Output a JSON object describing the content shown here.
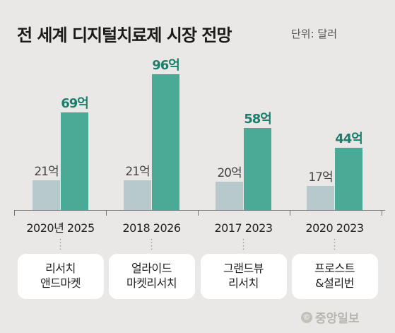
{
  "title": "전 세계 디지털치료제 시장 전망",
  "unit": "단위: 달러",
  "colors": {
    "start": "#b8c9cc",
    "forecast": "#4aaa96",
    "forecast_label": "#1c7f6c"
  },
  "chart_data": {
    "type": "bar",
    "title": "전 세계 디지털치료제 시장 전망",
    "unit": "단위: 달러",
    "groups": [
      {
        "labels": [
          "2020년",
          "2025"
        ],
        "values": [
          21,
          69
        ],
        "value_labels": [
          "21억",
          "69억"
        ],
        "source": [
          "리서치",
          "앤드마켓"
        ]
      },
      {
        "labels": [
          "2018",
          "2026"
        ],
        "values": [
          21,
          96
        ],
        "value_labels": [
          "21억",
          "96억"
        ],
        "source": [
          "얼라이드",
          "마켓리서치"
        ]
      },
      {
        "labels": [
          "2017",
          "2023"
        ],
        "values": [
          20,
          58
        ],
        "value_labels": [
          "20억",
          "58억"
        ],
        "source": [
          "그랜드뷰",
          "리서치"
        ]
      },
      {
        "labels": [
          "2020",
          "2023"
        ],
        "values": [
          17,
          44
        ],
        "value_labels": [
          "17억",
          "44억"
        ],
        "source": [
          "프로스트",
          "&설리번"
        ]
      }
    ],
    "ylim": [
      0,
      100
    ],
    "grid": false,
    "legend": "none"
  },
  "credit": "중앙일보",
  "credit_icon": "copyright-icon"
}
